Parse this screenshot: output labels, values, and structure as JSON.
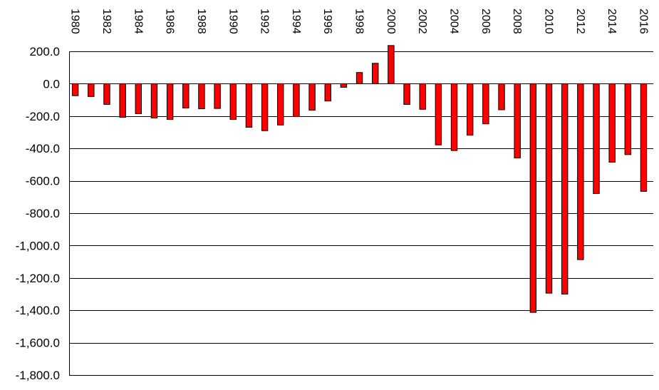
{
  "chart_data": {
    "type": "bar",
    "title": "",
    "xlabel": "",
    "ylabel": "",
    "ylim": [
      -1800,
      200
    ],
    "y_tick_values": [
      200,
      0,
      -200,
      -400,
      -600,
      -800,
      -1000,
      -1200,
      -1400,
      -1600,
      -1800
    ],
    "y_tick_labels": [
      "200.0",
      "0.0",
      "-200.0",
      "-400.0",
      "-600.0",
      "-800.0",
      "-1,000.0",
      "-1,200.0",
      "-1,400.0",
      "-1,600.0",
      "-1,800.0"
    ],
    "x_tick_labels": [
      "1980",
      "1982",
      "1984",
      "1986",
      "1988",
      "1990",
      "1992",
      "1994",
      "1996",
      "1998",
      "2000",
      "2002",
      "2004",
      "2006",
      "2008",
      "2010",
      "2012",
      "2014",
      "2016"
    ],
    "grid": true,
    "legend": "none",
    "bar_color": "#ff0000",
    "categories": [
      "1980",
      "1981",
      "1982",
      "1983",
      "1984",
      "1985",
      "1986",
      "1987",
      "1988",
      "1989",
      "1990",
      "1991",
      "1992",
      "1993",
      "1994",
      "1995",
      "1996",
      "1997",
      "1998",
      "1999",
      "2000",
      "2001",
      "2002",
      "2003",
      "2004",
      "2005",
      "2006",
      "2007",
      "2008",
      "2009",
      "2010",
      "2011",
      "2012",
      "2013",
      "2014",
      "2015",
      "2016"
    ],
    "values": [
      -74,
      -79,
      -128,
      -208,
      -185,
      -212,
      -221,
      -150,
      -155,
      -153,
      -221,
      -269,
      -290,
      -255,
      -203,
      -164,
      -107,
      -22,
      69,
      126,
      236,
      -128,
      -158,
      -378,
      -413,
      -318,
      -248,
      -161,
      -459,
      -1413,
      -1294,
      -1300,
      -1087,
      -679,
      -485,
      -438,
      -665
    ]
  }
}
